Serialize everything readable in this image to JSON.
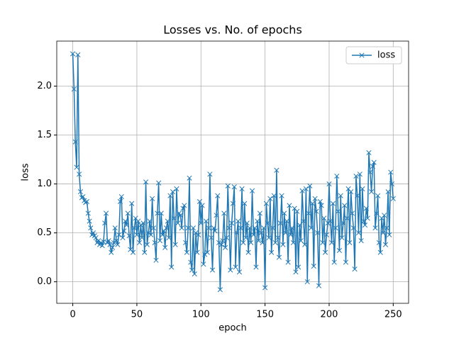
{
  "chart_data": {
    "type": "line",
    "title": "Losses vs. No. of epochs",
    "x_label": "epoch",
    "y_label": "loss",
    "x": [
      0,
      1,
      2,
      3,
      4,
      5,
      6,
      7,
      8,
      9,
      10,
      11,
      12,
      13,
      14,
      15,
      16,
      17,
      18,
      19,
      20,
      21,
      22,
      23,
      24,
      25,
      26,
      27,
      28,
      29,
      30,
      31,
      32,
      33,
      34,
      35,
      36,
      37,
      38,
      39,
      40,
      41,
      42,
      43,
      44,
      45,
      46,
      47,
      48,
      49,
      50,
      51,
      52,
      53,
      54,
      55,
      56,
      57,
      58,
      59,
      60,
      61,
      62,
      63,
      64,
      65,
      66,
      67,
      68,
      69,
      70,
      71,
      72,
      73,
      74,
      75,
      76,
      77,
      78,
      79,
      80,
      81,
      82,
      83,
      84,
      85,
      86,
      87,
      88,
      89,
      90,
      91,
      92,
      93,
      94,
      95,
      96,
      97,
      98,
      99,
      100,
      101,
      102,
      103,
      104,
      105,
      106,
      107,
      108,
      109,
      110,
      111,
      112,
      113,
      114,
      115,
      116,
      117,
      118,
      119,
      120,
      121,
      122,
      123,
      124,
      125,
      126,
      127,
      128,
      129,
      130,
      131,
      132,
      133,
      134,
      135,
      136,
      137,
      138,
      139,
      140,
      141,
      142,
      143,
      144,
      145,
      146,
      147,
      148,
      149,
      150,
      151,
      152,
      153,
      154,
      155,
      156,
      157,
      158,
      159,
      160,
      161,
      162,
      163,
      164,
      165,
      166,
      167,
      168,
      169,
      170,
      171,
      172,
      173,
      174,
      175,
      176,
      177,
      178,
      179,
      180,
      181,
      182,
      183,
      184,
      185,
      186,
      187,
      188,
      189,
      190,
      191,
      192,
      193,
      194,
      195,
      196,
      197,
      198,
      199,
      200,
      201,
      202,
      203,
      204,
      205,
      206,
      207,
      208,
      209,
      210,
      211,
      212,
      213,
      214,
      215,
      216,
      217,
      218,
      219,
      220,
      221,
      222,
      223,
      224,
      225,
      226,
      227,
      228,
      229,
      230,
      231,
      232,
      233,
      234,
      235,
      236,
      237,
      238,
      239,
      240,
      241,
      242,
      243,
      244,
      245,
      246,
      247,
      248,
      249,
      250
    ],
    "series": [
      {
        "name": "loss",
        "color": "#1f77b4",
        "values": [
          2.33,
          1.97,
          1.43,
          1.17,
          2.32,
          1.1,
          0.92,
          0.86,
          0.87,
          0.83,
          0.81,
          0.82,
          0.7,
          0.62,
          0.55,
          0.48,
          0.5,
          0.47,
          0.45,
          0.4,
          0.42,
          0.38,
          0.4,
          0.37,
          0.41,
          0.6,
          0.7,
          0.4,
          0.42,
          0.38,
          0.3,
          0.35,
          0.4,
          0.55,
          0.42,
          0.38,
          0.48,
          0.82,
          0.87,
          0.45,
          0.52,
          0.62,
          0.58,
          0.7,
          0.47,
          0.33,
          0.8,
          0.3,
          0.55,
          0.65,
          0.48,
          0.62,
          0.4,
          0.58,
          0.45,
          0.6,
          0.3,
          1.02,
          0.38,
          0.5,
          0.62,
          0.48,
          0.85,
          0.55,
          0.4,
          0.22,
          0.7,
          1.01,
          0.42,
          0.7,
          0.48,
          0.52,
          0.35,
          0.55,
          0.62,
          0.45,
          0.88,
          0.15,
          0.92,
          0.65,
          0.38,
          0.95,
          0.6,
          0.7,
          0.68,
          0.55,
          0.75,
          0.78,
          0.4,
          0.3,
          0.55,
          1.06,
          0.2,
          0.12,
          0.55,
          0.08,
          0.5,
          0.3,
          0.48,
          0.82,
          0.6,
          0.78,
          0.18,
          0.28,
          0.62,
          0.3,
          0.55,
          1.1,
          0.45,
          0.12,
          0.55,
          0.52,
          0.68,
          0.88,
          0.4,
          -0.08,
          0.38,
          0.42,
          0.7,
          0.35,
          0.45,
          0.98,
          0.55,
          0.12,
          0.6,
          0.8,
          0.97,
          0.15,
          0.5,
          0.62,
          0.1,
          0.55,
          0.95,
          0.4,
          0.8,
          0.45,
          0.6,
          0.3,
          0.55,
          0.4,
          0.93,
          0.48,
          0.55,
          0.15,
          0.62,
          0.42,
          0.7,
          0.5,
          0.4,
          0.55,
          -0.06,
          0.8,
          0.6,
          0.45,
          0.85,
          0.3,
          0.55,
          0.88,
          0.4,
          1.14,
          0.45,
          0.25,
          0.6,
          0.88,
          0.38,
          0.7,
          0.5,
          0.62,
          0.2,
          0.78,
          0.48,
          0.55,
          0.4,
          0.75,
          0.1,
          0.72,
          0.15,
          0.58,
          0.42,
          0.93,
          0.62,
          0.38,
          0.95,
          0.0,
          0.7,
          0.98,
          0.55,
          0.8,
          0.16,
          0.85,
          0.72,
          0.5,
          -0.04,
          0.82,
          0.78,
          0.4,
          0.65,
          0.3,
          0.48,
          0.6,
          1.0,
          0.62,
          0.4,
          0.8,
          0.2,
          0.55,
          1.08,
          0.72,
          0.32,
          0.88,
          0.45,
          0.6,
          0.78,
          0.2,
          0.65,
          0.95,
          0.4,
          0.92,
          0.7,
          0.55,
          0.13,
          1.08,
          0.88,
          0.5,
          1.1,
          0.42,
          0.95,
          0.62,
          0.58,
          0.75,
          0.65,
          1.32,
          1.12,
          0.92,
          1.18,
          1.22,
          0.55,
          0.7,
          0.88,
          0.4,
          0.3,
          0.65,
          0.5,
          0.68,
          0.38,
          0.55,
          0.92,
          0.48,
          1.12,
          1.0,
          0.85
        ]
      }
    ],
    "xlim": [
      -12.5,
      262
    ],
    "ylim": [
      -0.22,
      2.46
    ],
    "xticks": [
      0,
      50,
      100,
      150,
      200,
      250
    ],
    "yticks": [
      {
        "value": 0,
        "label": "0.0"
      },
      0.5,
      {
        "value": 1,
        "label": "1.0"
      },
      1.5,
      {
        "value": 2,
        "label": "2.0"
      }
    ],
    "grid": true,
    "legend": "upper right"
  }
}
